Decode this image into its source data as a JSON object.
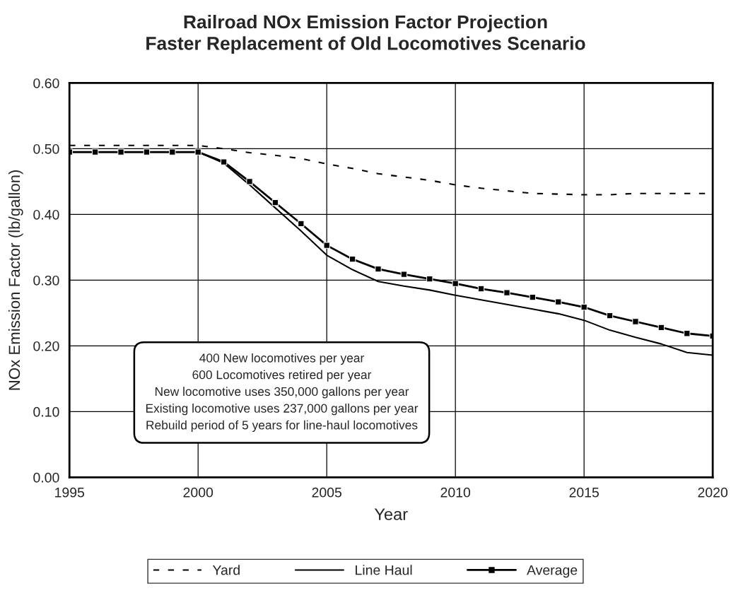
{
  "chart_data": {
    "type": "line",
    "title": "Railroad NOx Emission Factor Projection\nFaster Replacement of Old Locomotives Scenario",
    "xlabel": "Year",
    "ylabel": "NOx Emission Factor (lb/gallon)",
    "x": [
      1995,
      1996,
      1997,
      1998,
      1999,
      2000,
      2001,
      2002,
      2003,
      2004,
      2005,
      2006,
      2007,
      2008,
      2009,
      2010,
      2011,
      2012,
      2013,
      2014,
      2015,
      2016,
      2017,
      2018,
      2019,
      2020
    ],
    "series": [
      {
        "name": "Yard",
        "color": "#000000",
        "line_style": "dashed",
        "marker": "none",
        "values": [
          0.505,
          0.505,
          0.505,
          0.505,
          0.505,
          0.505,
          0.5,
          0.494,
          0.49,
          0.485,
          0.477,
          0.47,
          0.462,
          0.457,
          0.452,
          0.445,
          0.44,
          0.436,
          0.432,
          0.431,
          0.43,
          0.43,
          0.432,
          0.432,
          0.432,
          0.432
        ]
      },
      {
        "name": "Line Haul",
        "color": "#000000",
        "line_style": "solid",
        "marker": "none",
        "values": [
          0.495,
          0.495,
          0.495,
          0.495,
          0.495,
          0.495,
          0.478,
          0.445,
          0.41,
          0.375,
          0.338,
          0.316,
          0.298,
          0.291,
          0.285,
          0.277,
          0.27,
          0.263,
          0.256,
          0.249,
          0.239,
          0.224,
          0.213,
          0.203,
          0.19,
          0.186
        ]
      },
      {
        "name": "Average",
        "color": "#000000",
        "line_style": "solid",
        "marker": "square",
        "values": [
          0.495,
          0.495,
          0.495,
          0.495,
          0.495,
          0.495,
          0.48,
          0.45,
          0.418,
          0.386,
          0.353,
          0.332,
          0.317,
          0.309,
          0.302,
          0.295,
          0.287,
          0.281,
          0.274,
          0.267,
          0.259,
          0.246,
          0.237,
          0.228,
          0.219,
          0.215
        ]
      }
    ],
    "xlim": [
      1995,
      2020
    ],
    "xticks": [
      1995,
      2000,
      2005,
      2010,
      2015,
      2020
    ],
    "ylim": [
      0,
      0.6
    ],
    "yticks": [
      {
        "value": 0,
        "label": "0.00"
      },
      {
        "value": 0.1,
        "label": "0.10"
      },
      {
        "value": 0.2,
        "label": "0.20"
      },
      {
        "value": 0.3,
        "label": "0.30"
      },
      {
        "value": 0.4,
        "label": "0.40"
      },
      {
        "value": 0.5,
        "label": "0.50"
      },
      {
        "value": 0.6,
        "label": "0.60"
      }
    ],
    "grid": true,
    "legend": "bottom",
    "annotations": [
      "400 New locomotives per year\n600 Locomotives retired per year\nNew locomotive uses 350,000 gallons per year\nExisting locomotive uses 237,000 gallons per year\nRebuild period of 5 years for line-haul locomotives"
    ]
  }
}
